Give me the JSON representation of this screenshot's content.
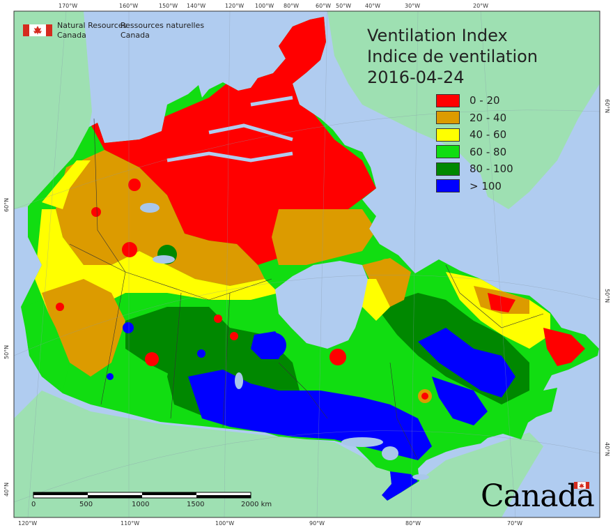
{
  "header": {
    "agency_en_line1": "Natural Resources",
    "agency_en_line2": "Canada",
    "agency_fr_line1": "Ressources naturelles",
    "agency_fr_line2": "Canada"
  },
  "map": {
    "title_en": "Ventilation Index",
    "title_fr": "Indice de ventilation",
    "date": "2016-04-24",
    "legend": [
      {
        "label": "0 - 20",
        "color": "#ff0000"
      },
      {
        "label": "20 - 40",
        "color": "#dc9b00"
      },
      {
        "label": "40 - 60",
        "color": "#ffff00"
      },
      {
        "label": "60 - 80",
        "color": "#11dd11"
      },
      {
        "label": "80 - 100",
        "color": "#008800"
      },
      {
        "label": "> 100",
        "color": "#0000ff"
      }
    ],
    "colors": {
      "ocean": "#b0ccf0",
      "land_outside": "#9ee0b2",
      "lakes": "#a9c7ea"
    }
  },
  "graticule": {
    "top_labels": [
      "170°W",
      "160°W",
      "150°W",
      "140°W",
      "120°W",
      "100°W",
      "80°W",
      "60°W",
      "50°W",
      "40°W",
      "30°W",
      "20°W"
    ],
    "bottom_labels": [
      "120°W",
      "110°W",
      "100°W",
      "90°W",
      "80°W",
      "70°W"
    ],
    "left_labels": [
      "60°N",
      "50°N",
      "40°N"
    ],
    "right_labels": [
      "60°N",
      "50°N",
      "40°N"
    ]
  },
  "scale_bar": {
    "labels": [
      "0",
      "500",
      "1000",
      "1500",
      "2000 km"
    ]
  },
  "footer": {
    "wordmark": "Canada"
  }
}
